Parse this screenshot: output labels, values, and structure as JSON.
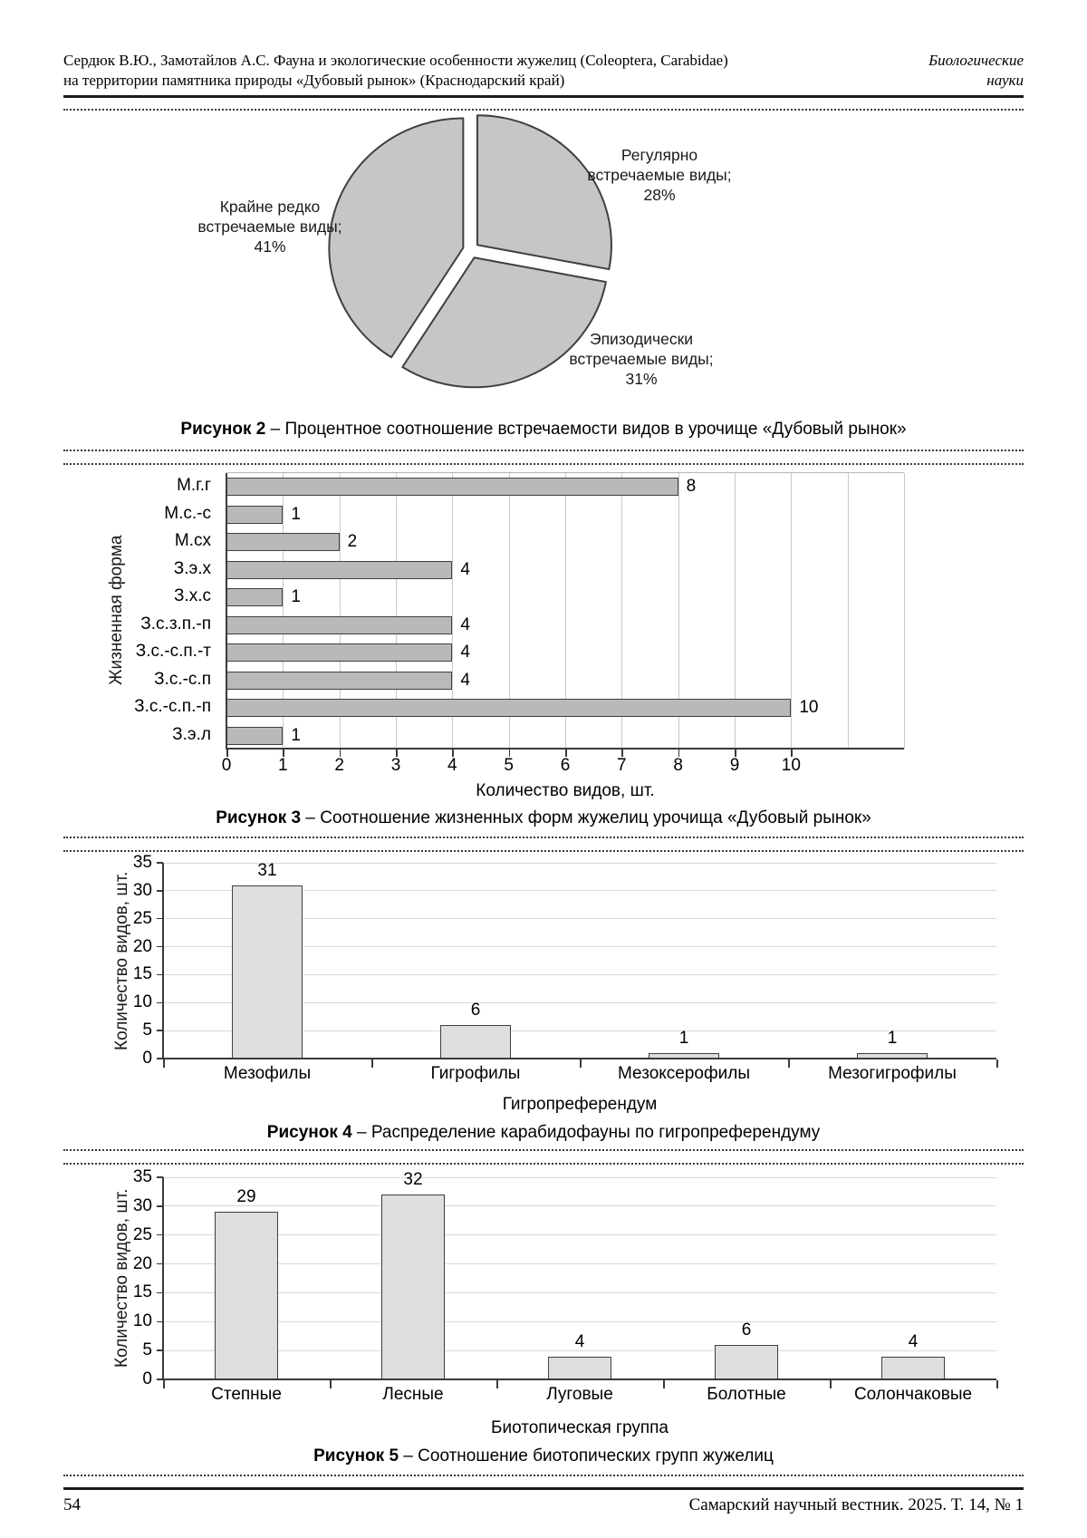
{
  "header": {
    "title_line1": "Сердюк В.Ю., Замотайлов А.С. Фауна и экологические особенности жужелиц (Coleoptera, Carabidae)",
    "title_line2": "на территории памятника природы «Дубовый рынок» (Краснодарский край)",
    "section_line1": "Биологические",
    "section_line2": "науки"
  },
  "footer": {
    "page_number": "54",
    "journal_ref": "Самарский научный вестник. 2025. Т. 14, № 1"
  },
  "captions": {
    "fig2": {
      "bold": "Рисунок 2",
      "rest": " – Процентное соотношение встречаемости видов в урочище «Дубовый рынок»"
    },
    "fig3": {
      "bold": "Рисунок 3",
      "rest": " – Соотношение жизненных форм жужелиц урочища «Дубовый рынок»"
    },
    "fig4": {
      "bold": "Рисунок 4",
      "rest": " – Распределение карабидофауны по гигропреферендуму"
    },
    "fig5": {
      "bold": "Рисунок 5",
      "rest": " – Соотношение биотопических групп жужелиц"
    }
  },
  "colors": {
    "pie_fill": "#c6c6c6",
    "pie_stroke": "#3f3f3f",
    "bar_fill": "#b9b9b9",
    "bar_fill_light": "#dedede",
    "bar_stroke": "#3f3f3f"
  },
  "chart_data": [
    {
      "type": "pie",
      "title": "Рисунок 2 – Процентное соотношение встречаемости видов в урочище «Дубовый рынок»",
      "units": "percent",
      "direction": "clockwise",
      "start_angle": "12 o'clock",
      "exploded": true,
      "slices": [
        {
          "label": "Регулярно встречаемые виды",
          "label_lines": [
            "Регулярно",
            "встречаемые виды;"
          ],
          "value": 28
        },
        {
          "label": "Эпизодически встречаемые виды",
          "label_lines": [
            "Эпизодически",
            "встречаемые виды;"
          ],
          "value": 31
        },
        {
          "label": "Крайне редко встречаемые виды",
          "label_lines": [
            "Крайне редко",
            "встречаемые виды;"
          ],
          "value": 41
        }
      ]
    },
    {
      "type": "bar",
      "orientation": "horizontal",
      "title": "Рисунок 3 – Соотношение жизненных форм жужелиц урочища «Дубовый рынок»",
      "categories": [
        "М.г.г",
        "М.с.-с",
        "М.сх",
        "З.э.х",
        "З.х.с",
        "З.с.з.п.-п",
        "З.с.-с.п.-т",
        "З.с.-с.п",
        "З.с.-с.п.-п",
        "З.э.л"
      ],
      "values": [
        8,
        1,
        2,
        4,
        1,
        4,
        4,
        4,
        10,
        1
      ],
      "xlabel": "Количество видов, шт.",
      "ylabel": "Жизненная форма",
      "xlim": [
        0,
        12
      ],
      "xticks": [
        0,
        1,
        2,
        3,
        4,
        5,
        6,
        7,
        8,
        9,
        10
      ],
      "grid": "vertical"
    },
    {
      "type": "bar",
      "orientation": "vertical",
      "title": "Рисунок 4 – Распределение карабидофауны по гигропреферендуму",
      "categories": [
        "Мезофилы",
        "Гигрофилы",
        "Мезоксерофилы",
        "Мезогигрофилы"
      ],
      "values": [
        31,
        6,
        1,
        1
      ],
      "xlabel": "Гигропреферендум",
      "ylabel": "Количество видов, шт.",
      "ylim": [
        0,
        35
      ],
      "yticks": [
        0,
        5,
        10,
        15,
        20,
        25,
        30,
        35
      ],
      "grid": "horizontal"
    },
    {
      "type": "bar",
      "orientation": "vertical",
      "title": "Рисунок 5 – Соотношение биотопических групп жужелиц",
      "categories": [
        "Степные",
        "Лесные",
        "Луговые",
        "Болотные",
        "Солончаковые"
      ],
      "values": [
        29,
        32,
        4,
        6,
        4
      ],
      "xlabel": "Биотопическая группа",
      "ylabel": "Количество видов, шт.",
      "ylim": [
        0,
        35
      ],
      "yticks": [
        0,
        5,
        10,
        15,
        20,
        25,
        30,
        35
      ],
      "grid": "horizontal"
    }
  ]
}
